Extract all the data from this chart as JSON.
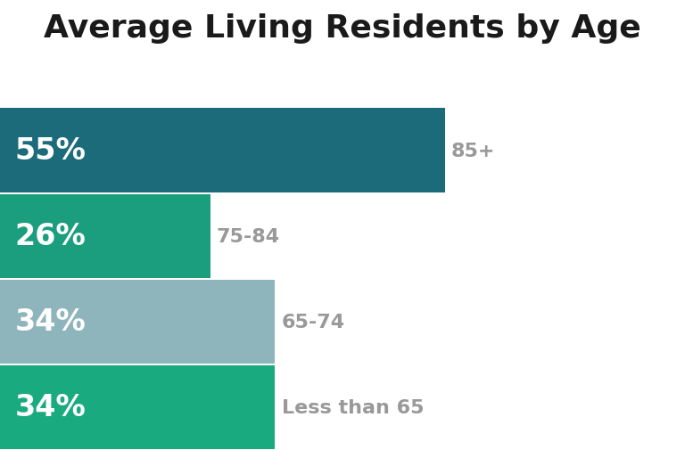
{
  "title": "Average Living Residents by Age",
  "categories": [
    "85+",
    "75-84",
    "65-74",
    "Less than 65"
  ],
  "values": [
    55,
    26,
    34,
    34
  ],
  "max_value": 72,
  "bar_colors": [
    "#1b6b7b",
    "#1a9e7e",
    "#8eb5bb",
    "#1aaa80"
  ],
  "label_color": "#ffffff",
  "category_color": "#999999",
  "title_color": "#1a1a1a",
  "background_color": "#ffffff",
  "bar_height": 0.98,
  "title_fontsize": 26,
  "value_fontsize": 24,
  "category_fontsize": 16
}
